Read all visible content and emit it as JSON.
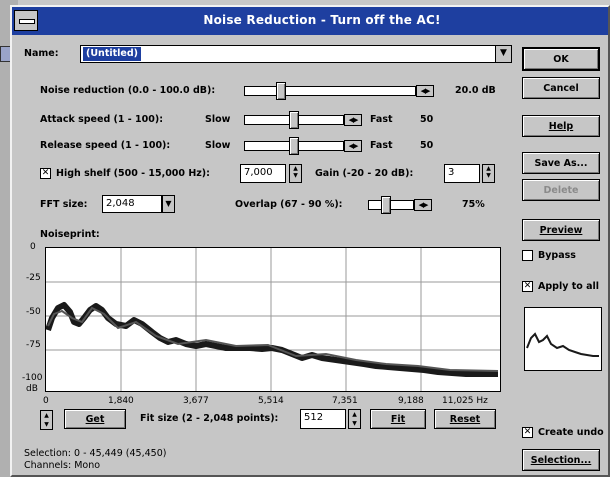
{
  "window": {
    "title": "Noise Reduction - Turn off the AC!"
  },
  "name_row": {
    "label": "Name:",
    "value": "(Untitled)"
  },
  "params": {
    "noise_reduction": {
      "label": "Noise reduction (0.0 - 100.0 dB):",
      "value": "20.0 dB",
      "level": 0.2
    },
    "attack_speed": {
      "label": "Attack speed (1 - 100):",
      "slow": "Slow",
      "fast": "Fast",
      "value": "50",
      "level": 0.5
    },
    "release_speed": {
      "label": "Release speed (1 - 100):",
      "slow": "Slow",
      "fast": "Fast",
      "value": "50",
      "level": 0.5
    },
    "high_shelf": {
      "label": "High shelf (500 - 15,000 Hz):",
      "checked": true,
      "value": "7,000"
    },
    "gain": {
      "label": "Gain (-20 - 20 dB):",
      "value": "3"
    },
    "fft_size": {
      "label": "FFT size:",
      "value": "2,048"
    },
    "overlap": {
      "label": "Overlap (67 - 90 %):",
      "value": "75%",
      "level": 0.348
    }
  },
  "noiseprint": {
    "label": "Noiseprint:",
    "y_ticks": [
      "0",
      "-25",
      "-50",
      "-75",
      "-100"
    ],
    "y_unit": "dB",
    "x_ticks": [
      "0",
      "1,840",
      "3,677",
      "5,514",
      "7,351",
      "9,188",
      "11,025 Hz"
    ]
  },
  "bottom_controls": {
    "get_label": "Get",
    "fit_label": "Fit size (2 - 2,048 points):",
    "fit_value": "512",
    "fit_button": "Fit",
    "reset_button": "Reset"
  },
  "status": {
    "selection_label": "Selection:",
    "selection_value": "0 - 45,449 (45,450)",
    "channels_label": "Channels:",
    "channels_value": "Mono"
  },
  "right_panel": {
    "ok": "OK",
    "cancel": "Cancel",
    "help": "Help",
    "save_as": "Save As...",
    "delete": "Delete",
    "preview": "Preview",
    "bypass": {
      "label": "Bypass",
      "checked": false
    },
    "apply_to_all": {
      "label": "Apply to all",
      "checked": true
    },
    "create_undo": {
      "label": "Create undo",
      "checked": true
    },
    "selection_button": "Selection..."
  },
  "colors": {
    "titlebar": "#1e3fa0",
    "window": "#c6c6c6",
    "graph_line": "#1a1a1a"
  }
}
